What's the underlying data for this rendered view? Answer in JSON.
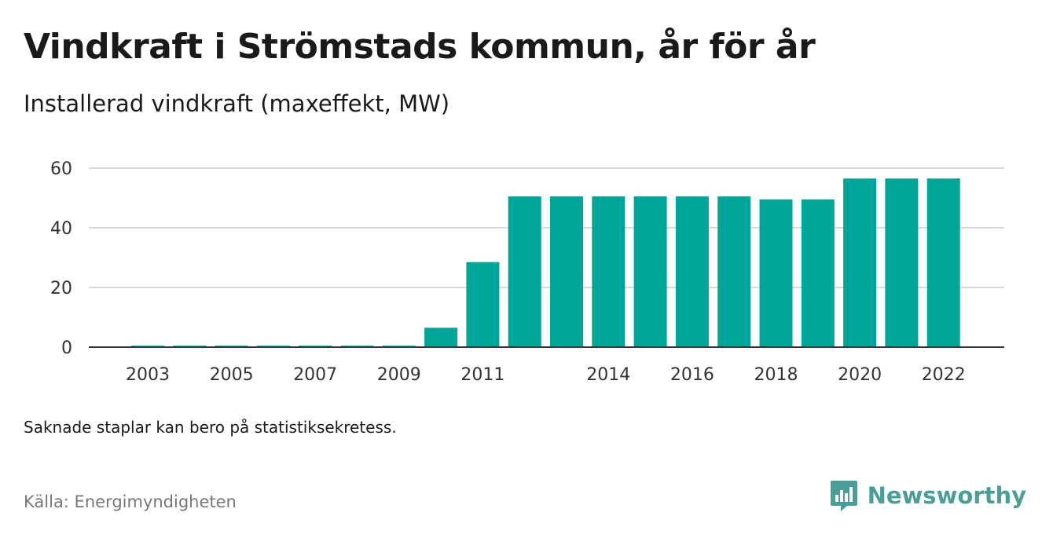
{
  "header": {
    "title": "Vindkraft i Strömstads kommun, år för år",
    "subtitle": "Installerad vindkraft (maxeffekt, MW)"
  },
  "footer": {
    "note": "Saknade staplar kan bero på statistiksekretess.",
    "source": "Källa: Energimyndigheten",
    "brand": "Newsworthy"
  },
  "colors": {
    "bar": "#00a59a",
    "grid": "#d9d9d9",
    "axis": "#333333",
    "brand": "#4a9e97"
  },
  "chart_data": {
    "type": "bar",
    "categories": [
      "2003",
      "2004",
      "2005",
      "2006",
      "2007",
      "2008",
      "2009",
      "2010",
      "2011",
      "2012",
      "2013",
      "2014",
      "2015",
      "2016",
      "2017",
      "2018",
      "2019",
      "2020",
      "2021",
      "2022"
    ],
    "values": [
      0.5,
      0.5,
      0.5,
      0.5,
      0.5,
      0.5,
      0.5,
      6.5,
      28.5,
      50.5,
      50.5,
      50.5,
      50.5,
      50.5,
      50.5,
      49.5,
      49.5,
      56.5,
      56.5,
      56.5
    ],
    "x_tick_labels": [
      "2003",
      "2005",
      "2007",
      "2009",
      "2011",
      "2014",
      "2016",
      "2018",
      "2020",
      "2022"
    ],
    "y_ticks": [
      0,
      20,
      40,
      60
    ],
    "ylim": [
      0,
      60
    ],
    "grid": true,
    "legend": "none"
  }
}
